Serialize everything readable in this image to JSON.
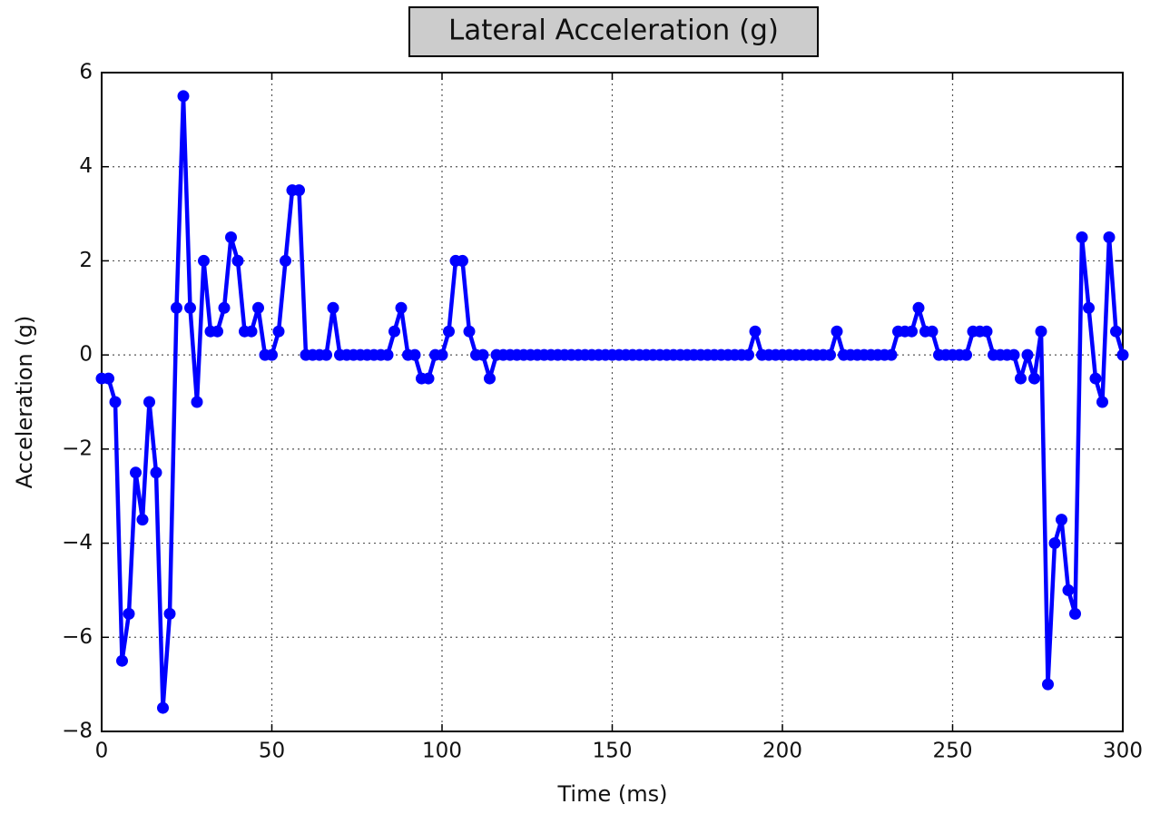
{
  "chart_data": {
    "type": "line",
    "title": "Lateral Acceleration (g)",
    "x_label": "Time (ms)",
    "y_label": "Acceleration (g)",
    "x": [
      0,
      2,
      4,
      6,
      8,
      10,
      12,
      14,
      16,
      18,
      20,
      22,
      24,
      26,
      28,
      30,
      32,
      34,
      36,
      38,
      40,
      42,
      44,
      46,
      48,
      50,
      52,
      54,
      56,
      58,
      60,
      62,
      64,
      66,
      68,
      70,
      72,
      74,
      76,
      78,
      80,
      82,
      84,
      86,
      88,
      90,
      92,
      94,
      96,
      98,
      100,
      102,
      104,
      106,
      108,
      110,
      112,
      114,
      116,
      118,
      120,
      122,
      124,
      126,
      128,
      130,
      132,
      134,
      136,
      138,
      140,
      142,
      144,
      146,
      148,
      150,
      152,
      154,
      156,
      158,
      160,
      162,
      164,
      166,
      168,
      170,
      172,
      174,
      176,
      178,
      180,
      182,
      184,
      186,
      188,
      190,
      192,
      194,
      196,
      198,
      200,
      202,
      204,
      206,
      208,
      210,
      212,
      214,
      216,
      218,
      220,
      222,
      224,
      226,
      228,
      230,
      232,
      234,
      236,
      238,
      240,
      242,
      244,
      246,
      248,
      250,
      252,
      254,
      256,
      258,
      260,
      262,
      264,
      266,
      268,
      270,
      272,
      274,
      276,
      278,
      280,
      282,
      284,
      286,
      288,
      290,
      292,
      294,
      296,
      298,
      300
    ],
    "series": [
      {
        "name": "Lateral Acceleration",
        "color": "#0000ff",
        "values": [
          -0.5,
          -0.5,
          -1,
          -6.5,
          -5.5,
          -2.5,
          -3.5,
          -1,
          -2.5,
          -7.5,
          -5.5,
          1,
          5.5,
          1,
          -1,
          2,
          0.5,
          0.5,
          1,
          2.5,
          2,
          0.5,
          0.5,
          1,
          0,
          0,
          0.5,
          2,
          3.5,
          3.5,
          0,
          0,
          0,
          0,
          1,
          0,
          0,
          0,
          0,
          0,
          0,
          0,
          0,
          0.5,
          1,
          0,
          0,
          -0.5,
          -0.5,
          0,
          0,
          0.5,
          2,
          2,
          0.5,
          0,
          0,
          -0.5,
          0,
          0,
          0,
          0,
          0,
          0,
          0,
          0,
          0,
          0,
          0,
          0,
          0,
          0,
          0,
          0,
          0,
          0,
          0,
          0,
          0,
          0,
          0,
          0,
          0,
          0,
          0,
          0,
          0,
          0,
          0,
          0,
          0,
          0,
          0,
          0,
          0,
          0,
          0.5,
          0,
          0,
          0,
          0,
          0,
          0,
          0,
          0,
          0,
          0,
          0,
          0.5,
          0,
          0,
          0,
          0,
          0,
          0,
          0,
          0,
          0.5,
          0.5,
          0.5,
          1,
          0.5,
          0.5,
          0,
          0,
          0,
          0,
          0,
          0.5,
          0.5,
          0.5,
          0,
          0,
          0,
          0,
          -0.5,
          0,
          -0.5,
          0.5,
          -7,
          -4,
          -3.5,
          -5,
          -5.5,
          2.5,
          1,
          -0.5,
          -1,
          2.5,
          0.5,
          0
        ]
      }
    ],
    "xlim": [
      0,
      300
    ],
    "xticks": [
      0,
      50,
      100,
      150,
      200,
      250,
      300
    ],
    "ylim": [
      -8,
      6
    ],
    "yticks": [
      {
        "value": -8,
        "label": "−8"
      },
      {
        "value": -6,
        "label": "−6"
      },
      {
        "value": -4,
        "label": "−4"
      },
      {
        "value": -2,
        "label": "−2"
      },
      0,
      2,
      4,
      6
    ],
    "grid": true
  }
}
